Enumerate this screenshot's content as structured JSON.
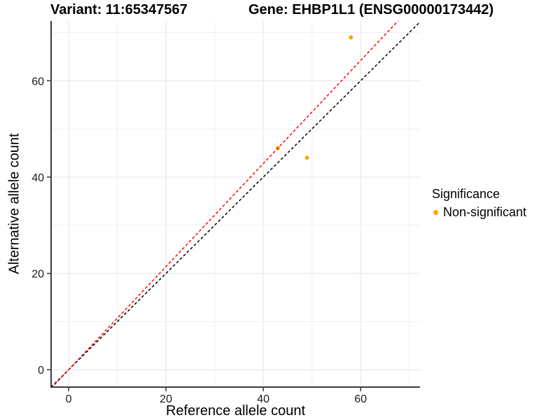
{
  "chart_data": {
    "type": "scatter",
    "title_left": "Variant: 11:65347567",
    "title_right": "Gene: EHBP1L1 (ENSG00000173442)",
    "xlabel": "Reference allele count",
    "ylabel": "Alternative allele count",
    "xlim": [
      -3.6,
      72.2
    ],
    "ylim": [
      -3.6,
      72.4
    ],
    "x_ticks": [
      0,
      20,
      40,
      60
    ],
    "y_ticks": [
      0,
      20,
      40,
      60
    ],
    "x_minor_gridlines": [
      10,
      30,
      50,
      70
    ],
    "y_minor_gridlines": [
      10,
      30,
      50,
      70
    ],
    "grid": "major+minor",
    "legend_position": "right",
    "series": [
      {
        "name": "Non-significant",
        "color": "#FFA500",
        "points": [
          {
            "x": 58,
            "y": 69
          },
          {
            "x": 43,
            "y": 46
          },
          {
            "x": 49,
            "y": 44
          }
        ]
      }
    ],
    "reference_lines": [
      {
        "name": "identity",
        "slope": 1,
        "intercept": 0,
        "color": "#000000",
        "style": "dashed"
      },
      {
        "name": "allelic-ratio",
        "slope": 1.07,
        "intercept": 0,
        "color": "#FF0000",
        "style": "dashed"
      }
    ],
    "legend": {
      "title": "Significance",
      "items": [
        {
          "label": "Non-significant",
          "color": "#FFA500"
        }
      ]
    },
    "colors": {
      "background": "#FFFFFF",
      "grid_major": "#E4E4E4",
      "grid_minor": "#F1F1F1",
      "axis_line": "#3C3C3C",
      "tick": "#333333",
      "tick_label": "#1A1A1A"
    }
  }
}
